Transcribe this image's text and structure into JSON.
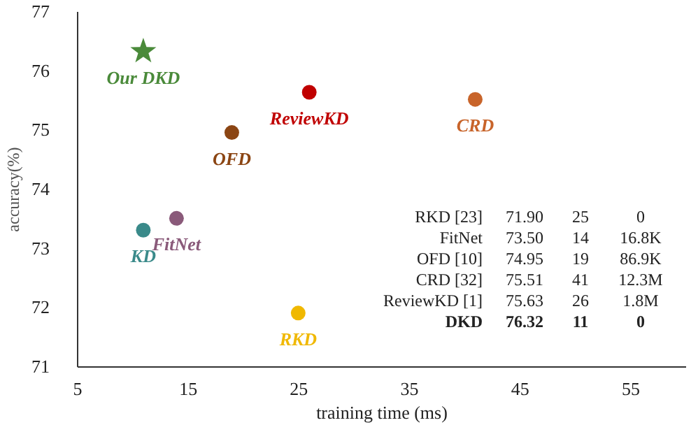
{
  "chart_data": {
    "type": "scatter",
    "xlabel": "training time (ms)",
    "ylabel": "accuracy(%)",
    "xlim": [
      5,
      60
    ],
    "xticks": [
      5,
      15,
      25,
      35,
      45,
      55
    ],
    "ylim": [
      71,
      77
    ],
    "yticks": [
      71,
      72,
      73,
      74,
      75,
      76,
      77
    ],
    "grid": false,
    "series": [
      {
        "name": "Our DKD",
        "color": "#4a8a3a",
        "marker": "star",
        "x": [
          11
        ],
        "values": [
          76.32
        ]
      },
      {
        "name": "ReviewKD",
        "color": "#c00000",
        "marker": "circle",
        "x": [
          26
        ],
        "values": [
          75.63
        ]
      },
      {
        "name": "CRD",
        "color": "#c8642a",
        "marker": "circle",
        "x": [
          41
        ],
        "values": [
          75.51
        ]
      },
      {
        "name": "OFD",
        "color": "#8b4513",
        "marker": "circle",
        "x": [
          19
        ],
        "values": [
          74.95
        ]
      },
      {
        "name": "FitNet",
        "color": "#8a5a7a",
        "marker": "circle",
        "x": [
          14
        ],
        "values": [
          73.5
        ]
      },
      {
        "name": "KD",
        "color": "#3a8a8a",
        "marker": "circle",
        "x": [
          11
        ],
        "values": [
          73.3
        ]
      },
      {
        "name": "RKD",
        "color": "#f0b800",
        "marker": "circle",
        "x": [
          25
        ],
        "values": [
          71.9
        ]
      }
    ],
    "annotations": [
      "RKD [23]  71.90  25  0",
      "FitNet  73.50  14  16.8K",
      "OFD [10]  74.95  19  86.9K",
      "CRD [32]  75.51  41  12.3M",
      "ReviewKD [1]  75.63  26  1.8M",
      "DKD  76.32  11  0"
    ]
  }
}
